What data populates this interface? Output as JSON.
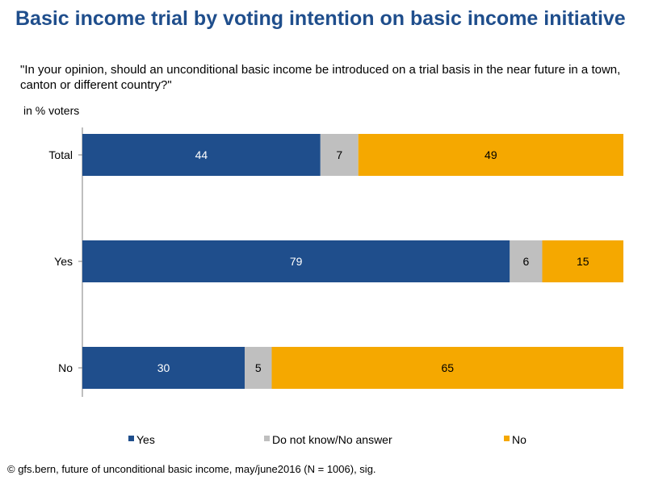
{
  "chart_data": {
    "type": "bar",
    "orientation": "horizontal",
    "stacked": true,
    "title": "Basic income trial by voting intention on basic income initiative",
    "subtitle": "\"In your opinion, should an unconditional basic income be introduced on a trial basis in the near future in a town, canton or different country?\"",
    "unit_label": "in % voters",
    "categories": [
      "Total",
      "Yes",
      "No"
    ],
    "series": [
      {
        "name": "Yes",
        "color": "#1F4E8C",
        "label_color": "#ffffff",
        "values": [
          44,
          79,
          30
        ]
      },
      {
        "name": "Do not know/No answer",
        "color": "#BFBFBF",
        "label_color": "#000000",
        "values": [
          7,
          6,
          5
        ]
      },
      {
        "name": "No",
        "color": "#F5A800",
        "label_color": "#000000",
        "values": [
          49,
          15,
          65
        ]
      }
    ],
    "xlim": [
      0,
      100
    ],
    "grid": false,
    "legend_position": "bottom"
  },
  "source_note": "© gfs.bern, future of unconditional basic income, may/june2016 (N = 1006), sig."
}
